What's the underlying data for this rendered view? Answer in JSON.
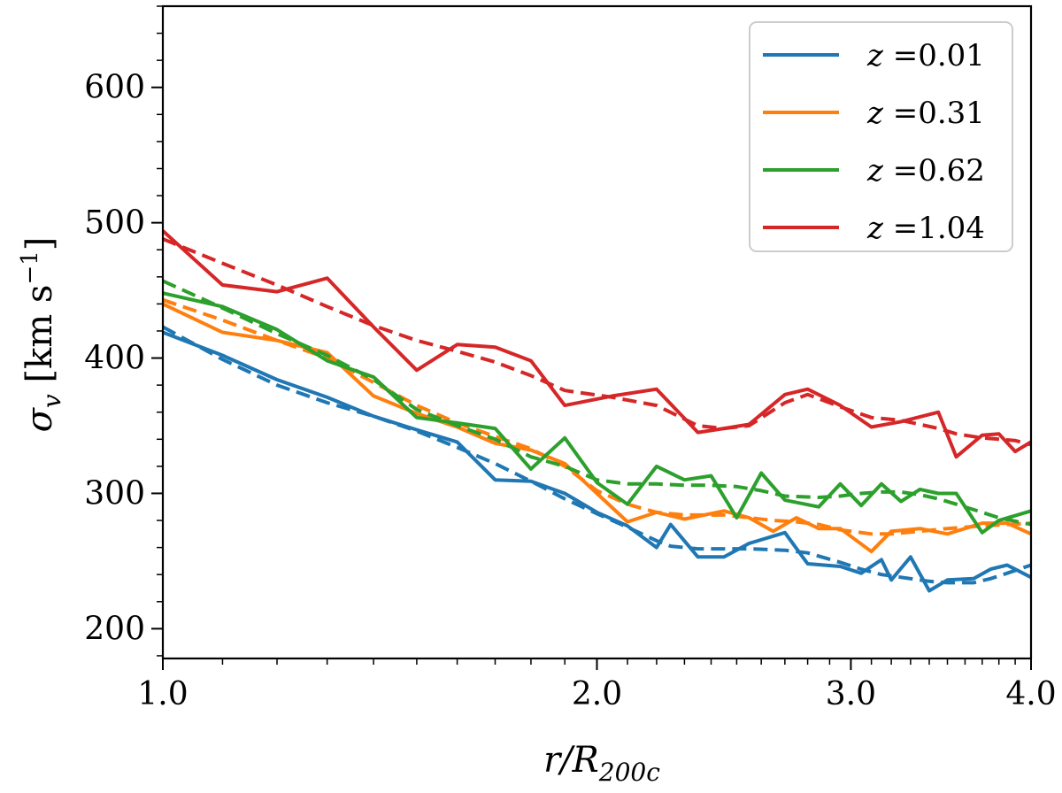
{
  "chart_data": {
    "type": "line",
    "title": "",
    "xlabel": "r/R200c",
    "ylabel": "σv [km s−1]",
    "xscale": "log",
    "xlim": [
      1.0,
      4.0
    ],
    "ylim": [
      178,
      660
    ],
    "xticks": [
      1.0,
      2.0,
      3.0,
      4.0
    ],
    "xtick_labels": [
      "1.0",
      "2.0",
      "3.0",
      "4.0"
    ],
    "yticks": [
      200,
      300,
      400,
      500,
      600
    ],
    "ytick_labels": [
      "200",
      "300",
      "400",
      "500",
      "600"
    ],
    "legend_placement": "top-right",
    "series": [
      {
        "name": "z = 0.01",
        "label": "0.01",
        "color": "#1f77b4",
        "x": [
          1.0,
          1.1,
          1.2,
          1.3,
          1.4,
          1.5,
          1.6,
          1.7,
          1.8,
          1.9,
          2.0,
          2.1,
          2.2,
          2.25,
          2.35,
          2.45,
          2.55,
          2.7,
          2.8,
          2.95,
          3.05,
          3.15,
          3.2,
          3.3,
          3.4,
          3.5,
          3.65,
          3.75,
          3.85,
          4.0
        ],
        "values": [
          419,
          402,
          384,
          371,
          357,
          347,
          338,
          310,
          309,
          300,
          286,
          276,
          260,
          277,
          253,
          253,
          263,
          271,
          248,
          246,
          241,
          251,
          236,
          253,
          228,
          236,
          237,
          244,
          247,
          238
        ],
        "fit_values": [
          423,
          399,
          380,
          367,
          357,
          346,
          334,
          322,
          309,
          296,
          285,
          275,
          265,
          261,
          259,
          259,
          259,
          258,
          256,
          249,
          244,
          240,
          239,
          237,
          235,
          234,
          234,
          237,
          241,
          247
        ]
      },
      {
        "name": "z = 0.31",
        "label": "0.31",
        "color": "#ff7f0e",
        "x": [
          1.0,
          1.1,
          1.2,
          1.3,
          1.4,
          1.5,
          1.6,
          1.7,
          1.8,
          1.9,
          2.0,
          2.1,
          2.2,
          2.3,
          2.45,
          2.55,
          2.65,
          2.75,
          2.85,
          2.95,
          3.1,
          3.2,
          3.35,
          3.5,
          3.7,
          3.85,
          4.0
        ],
        "values": [
          440,
          419,
          413,
          404,
          372,
          359,
          349,
          337,
          332,
          322,
          300,
          279,
          286,
          281,
          287,
          282,
          272,
          282,
          274,
          274,
          257,
          272,
          274,
          270,
          278,
          278,
          270
        ],
        "fit_values": [
          443,
          428,
          413,
          400,
          382,
          365,
          352,
          342,
          333,
          320,
          302,
          292,
          286,
          284,
          284,
          282,
          280,
          279,
          277,
          273,
          270,
          270,
          272,
          274,
          276,
          277,
          278
        ]
      },
      {
        "name": "z = 0.62",
        "label": "0.62",
        "color": "#2ca02c",
        "x": [
          1.0,
          1.1,
          1.2,
          1.3,
          1.4,
          1.5,
          1.6,
          1.7,
          1.8,
          1.9,
          2.0,
          2.1,
          2.2,
          2.3,
          2.4,
          2.5,
          2.6,
          2.7,
          2.85,
          2.95,
          3.05,
          3.15,
          3.25,
          3.35,
          3.45,
          3.55,
          3.7,
          3.8,
          4.0
        ],
        "values": [
          448,
          438,
          421,
          398,
          386,
          356,
          352,
          348,
          318,
          341,
          308,
          292,
          320,
          310,
          313,
          282,
          315,
          295,
          290,
          307,
          291,
          307,
          294,
          303,
          300,
          300,
          271,
          280,
          287
        ],
        "fit_values": [
          457,
          437,
          418,
          402,
          384,
          362,
          350,
          340,
          327,
          320,
          310,
          307,
          307,
          306,
          306,
          305,
          302,
          298,
          297,
          298,
          300,
          301,
          301,
          299,
          296,
          292,
          286,
          282,
          277
        ]
      },
      {
        "name": "z = 1.04",
        "label": "1.04",
        "color": "#d62728",
        "x": [
          1.0,
          1.1,
          1.2,
          1.3,
          1.4,
          1.5,
          1.6,
          1.7,
          1.8,
          1.9,
          2.05,
          2.2,
          2.35,
          2.45,
          2.55,
          2.7,
          2.8,
          2.95,
          3.1,
          3.25,
          3.45,
          3.55,
          3.7,
          3.8,
          3.9,
          4.0
        ],
        "values": [
          494,
          454,
          449,
          459,
          423,
          391,
          410,
          408,
          398,
          365,
          372,
          377,
          345,
          348,
          351,
          373,
          377,
          365,
          349,
          353,
          360,
          327,
          343,
          344,
          331,
          338
        ],
        "fit_values": [
          488,
          470,
          454,
          438,
          424,
          413,
          405,
          397,
          387,
          376,
          371,
          365,
          350,
          348,
          350,
          367,
          373,
          364,
          356,
          354,
          348,
          344,
          341,
          340,
          339,
          336
        ]
      }
    ]
  }
}
